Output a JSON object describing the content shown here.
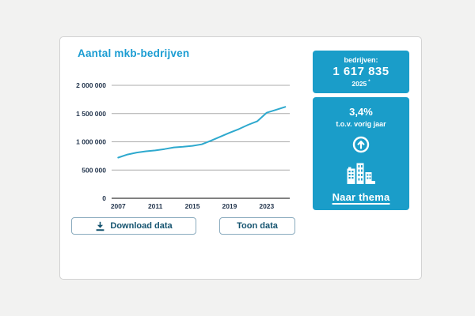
{
  "header": {
    "title": "Aantal mkb-bedrijven"
  },
  "chart_data": {
    "type": "line",
    "title": "Aantal mkb-bedrijven",
    "x": [
      2007,
      2008,
      2009,
      2010,
      2011,
      2012,
      2013,
      2014,
      2015,
      2016,
      2017,
      2018,
      2019,
      2020,
      2021,
      2022,
      2023,
      2024,
      2025
    ],
    "values": [
      720000,
      775000,
      810000,
      832000,
      848000,
      872000,
      900000,
      912000,
      928000,
      955000,
      1020000,
      1090000,
      1160000,
      1225000,
      1300000,
      1365000,
      1515000,
      1565000,
      1617835
    ],
    "x_tick_labels": [
      "2007",
      "2011",
      "2015",
      "2019",
      "2023"
    ],
    "x_tick_values": [
      2007,
      2011,
      2015,
      2019,
      2023
    ],
    "y_tick_labels": [
      "2 000 000",
      "1 500 000",
      "1 000 000",
      "500 000",
      "0"
    ],
    "y_tick_values": [
      2000000,
      1500000,
      1000000,
      500000,
      0
    ],
    "xlim": [
      2007,
      2025
    ],
    "ylim": [
      0,
      2000000
    ],
    "grid": true,
    "legend": false,
    "line_color": "#2ea9ce"
  },
  "toolbar": {
    "download_label": "Download data",
    "show_label": "Toon data"
  },
  "kpi_top": {
    "label": "bedrijven:",
    "value": "1 617 835",
    "period": "2025",
    "period_mark": "*"
  },
  "kpi_bottom": {
    "change_value": "3,4%",
    "change_caption": "t.o.v. vorig jaar",
    "trend_icon": "arrow-up-circle",
    "theme_icon": "buildings",
    "link_label": "Naar thema"
  },
  "colors": {
    "accent": "#1a9cd2",
    "panel": "#1a9dc9",
    "line": "#2ea9ce",
    "grid": "#ababab",
    "axis": "#6f6f6f",
    "tick_text": "#24364e",
    "button_text": "#14536f",
    "button_border": "#8aabbe",
    "page_background": "#f2f2f1"
  }
}
